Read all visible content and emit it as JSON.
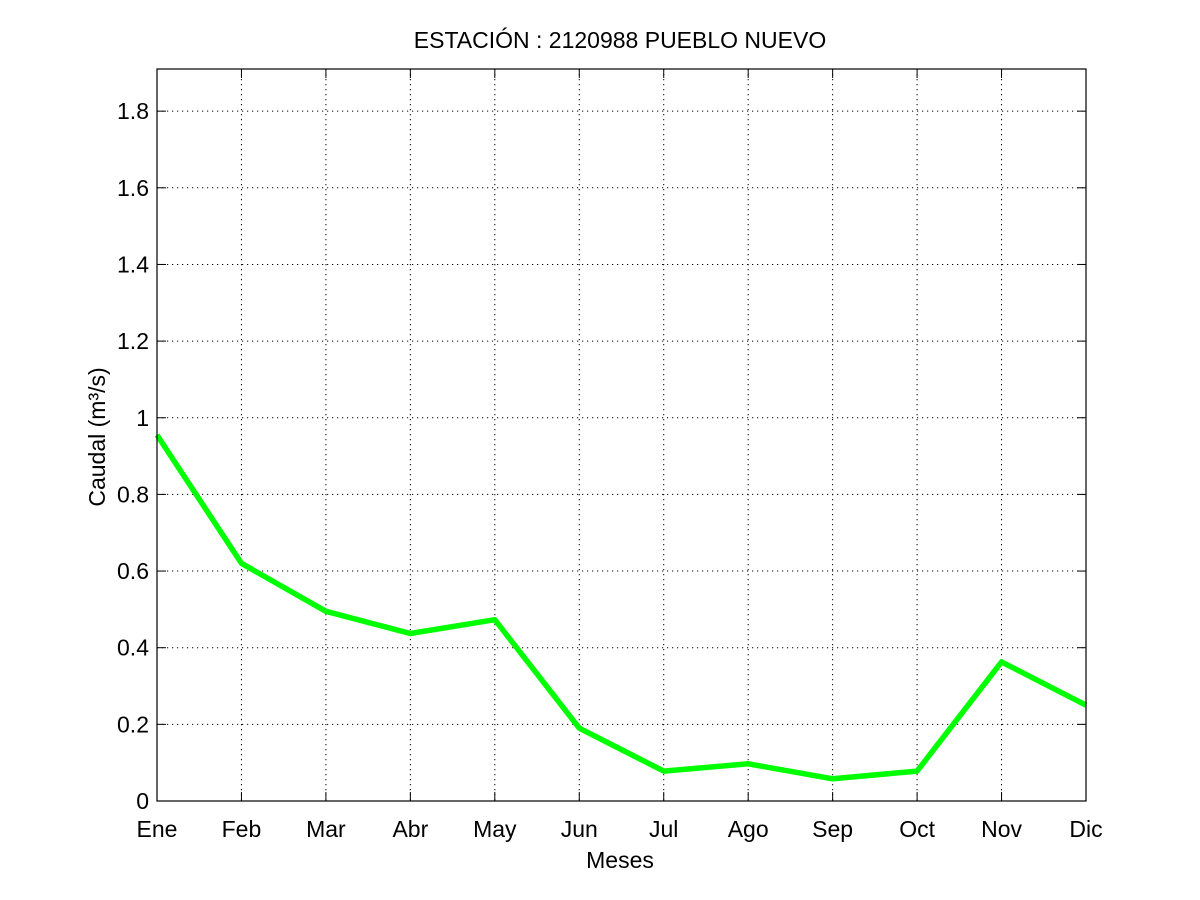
{
  "chart_data": {
    "type": "line",
    "title": "ESTACIÓN :  2120988  PUEBLO NUEVO",
    "xlabel": "Meses",
    "ylabel": "Caudal (m³/s)",
    "categories": [
      "Ene",
      "Feb",
      "Mar",
      "Abr",
      "May",
      "Jun",
      "Jul",
      "Ago",
      "Sep",
      "Oct",
      "Nov",
      "Dic"
    ],
    "series": [
      {
        "values": [
          0.955,
          0.62,
          0.495,
          0.437,
          0.473,
          0.19,
          0.078,
          0.097,
          0.058,
          0.078,
          0.363,
          0.25
        ],
        "color": "#00ff00"
      }
    ],
    "ylim": [
      0,
      1.91
    ],
    "yticks": [
      0,
      0.2,
      0.4,
      0.6,
      0.8,
      1,
      1.2,
      1.4,
      1.6,
      1.8
    ],
    "ytick_labels": [
      "0",
      "0.2",
      "0.4",
      "0.6",
      "0.8",
      "1",
      "1.2",
      "1.4",
      "1.6",
      "1.8"
    ],
    "grid": true,
    "grid_style": "dotted"
  }
}
